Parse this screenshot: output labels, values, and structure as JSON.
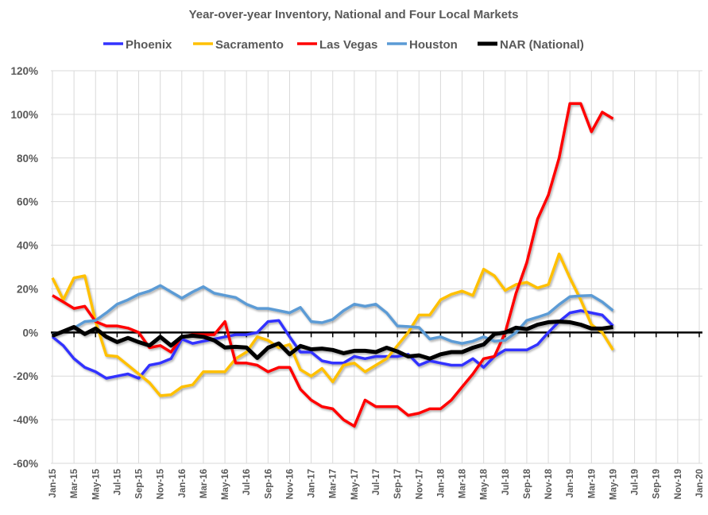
{
  "chart_data": {
    "type": "line",
    "title": "Year-over-year Inventory, National and Four Local Markets",
    "xlabel": "",
    "ylabel": "",
    "x_start": "Jan-15",
    "x_tick_labels": [
      "Jan-15",
      "Mar-15",
      "May-15",
      "Jul-15",
      "Sep-15",
      "Nov-15",
      "Jan-16",
      "Mar-16",
      "May-16",
      "Jul-16",
      "Sep-16",
      "Nov-16",
      "Jan-17",
      "Mar-17",
      "May-17",
      "Jul-17",
      "Sep-17",
      "Nov-17",
      "Jan-18",
      "Mar-18",
      "May-18",
      "Jul-18",
      "Sep-18",
      "Nov-18",
      "Jan-19",
      "Mar-19",
      "May-19",
      "Jul-19",
      "Sep-19",
      "Nov-19",
      "Jan-20"
    ],
    "y_tick_labels": [
      "-60%",
      "-40%",
      "-20%",
      "0%",
      "20%",
      "40%",
      "60%",
      "80%",
      "100%",
      "120%"
    ],
    "ylim": [
      -60,
      120
    ],
    "y_unit": "%",
    "grid": true,
    "legend_position": "top",
    "series": [
      {
        "name": "Phoenix",
        "color": "#3333ff",
        "values": [
          -2,
          -6,
          -12,
          -16,
          -18,
          -21,
          -20,
          -19,
          -21,
          -15,
          -14,
          -12,
          -3,
          -5,
          -4,
          -3,
          -2,
          -1,
          -1,
          0,
          5,
          5.5,
          -2,
          -9,
          -9,
          -13,
          -14,
          -14,
          -11,
          -12,
          -11,
          -11,
          -11,
          -10,
          -15,
          -13,
          -14,
          -15,
          -15,
          -12,
          -16,
          -11,
          -8,
          -8,
          -8,
          -5.5,
          0,
          5,
          9,
          10,
          9,
          8,
          3
        ]
      },
      {
        "name": "Sacramento",
        "color": "#ffc000",
        "values": [
          25,
          15,
          25,
          26,
          5,
          -10.5,
          -11,
          -15,
          -19,
          -23,
          -29,
          -28.5,
          -25,
          -24,
          -18,
          -18,
          -18,
          -12,
          -9,
          -2,
          -3.6,
          -7,
          -5.5,
          -17,
          -20,
          -16.5,
          -22.6,
          -15,
          -14,
          -18,
          -15,
          -12,
          -6,
          0,
          8,
          8,
          15,
          17.5,
          19,
          17,
          29,
          26,
          19.3,
          22,
          23,
          20.4,
          22,
          36,
          25,
          15,
          3.6,
          0,
          -8
        ]
      },
      {
        "name": "Las Vegas",
        "color": "#ff0000",
        "values": [
          17,
          14,
          11,
          12,
          5,
          3,
          3,
          2,
          0,
          -7,
          -6,
          -9,
          -2,
          -1,
          -1,
          -1,
          5,
          -14,
          -14,
          -15,
          -18,
          -16,
          -16,
          -26,
          -31,
          -34,
          -35,
          -40,
          -43,
          -31,
          -34,
          -34,
          -34,
          -38,
          -37,
          -35,
          -35,
          -31,
          -25,
          -19,
          -12,
          -11,
          0,
          18,
          32,
          52,
          63,
          80,
          105,
          105,
          92,
          101,
          98
        ]
      },
      {
        "name": "Houston",
        "color": "#5b9bd5",
        "values": [
          -1,
          0.5,
          2,
          5,
          5.5,
          9,
          13,
          15,
          17.5,
          19,
          21.5,
          18.6,
          15.7,
          18.6,
          21,
          18,
          17,
          16,
          13,
          11,
          11,
          10,
          9,
          11.5,
          5,
          4.5,
          6,
          10,
          13,
          12,
          13,
          9,
          3,
          2.7,
          2.3,
          -3,
          -2,
          -4,
          -5,
          -4,
          -2,
          -4,
          -3.6,
          0,
          5.5,
          7,
          8.7,
          12.8,
          16.4,
          16.8,
          17,
          14,
          10
        ]
      },
      {
        "name": "NAR (National)",
        "color": "#000000",
        "values": [
          -1.5,
          0.5,
          2.5,
          -0.7,
          1.8,
          -2,
          -4.4,
          -2.5,
          -4.4,
          -6,
          -2,
          -6,
          -2,
          -1.5,
          -2,
          -3.6,
          -6.9,
          -6.6,
          -6.9,
          -11.7,
          -7,
          -5,
          -10,
          -6.2,
          -7.7,
          -7.4,
          -8,
          -9.5,
          -8.4,
          -8.4,
          -9,
          -7,
          -8.7,
          -11,
          -10.5,
          -12,
          -10,
          -9,
          -9,
          -7,
          -5.5,
          -0.7,
          0,
          2.2,
          1.5,
          3.6,
          4.7,
          5,
          4.7,
          3.6,
          1.8,
          1.8,
          2.5
        ]
      }
    ]
  }
}
